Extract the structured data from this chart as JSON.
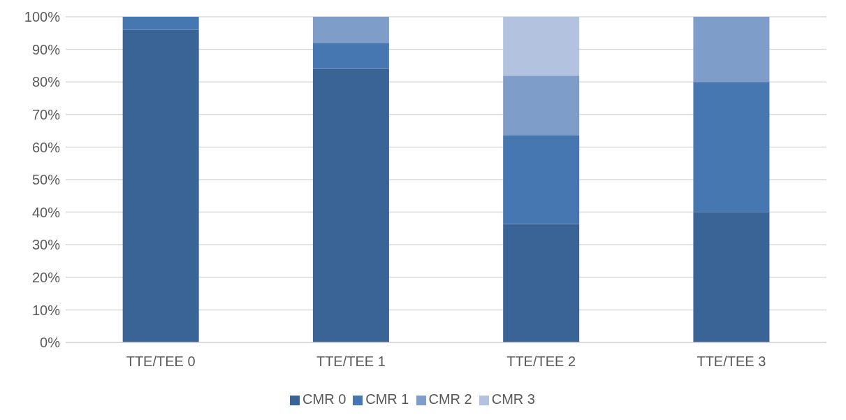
{
  "chart_data": {
    "type": "bar",
    "stacked": true,
    "categories": [
      "TTE/TEE 0",
      "TTE/TEE 1",
      "TTE/TEE 2",
      "TTE/TEE 3"
    ],
    "series": [
      {
        "name": "CMR 0",
        "color": "#3a6496",
        "values": [
          96,
          84,
          36.4,
          40
        ]
      },
      {
        "name": "CMR 1",
        "color": "#4677b0",
        "values": [
          4,
          8,
          27.3,
          40
        ]
      },
      {
        "name": "CMR 2",
        "color": "#7f9dc9",
        "values": [
          0,
          8,
          18.2,
          20
        ]
      },
      {
        "name": "CMR 3",
        "color": "#b3c2de",
        "values": [
          0,
          0,
          18.2,
          0
        ]
      }
    ],
    "ylim": [
      0,
      100
    ],
    "yticks": [
      {
        "value": 0,
        "label": "0%"
      },
      {
        "value": 10,
        "label": "10%"
      },
      {
        "value": 20,
        "label": "20%"
      },
      {
        "value": 30,
        "label": "30%"
      },
      {
        "value": 40,
        "label": "40%"
      },
      {
        "value": 50,
        "label": "50%"
      },
      {
        "value": 60,
        "label": "60%"
      },
      {
        "value": 70,
        "label": "70%"
      },
      {
        "value": 80,
        "label": "80%"
      },
      {
        "value": 90,
        "label": "90%"
      },
      {
        "value": 100,
        "label": "100%"
      }
    ],
    "grid": "y",
    "legend": "bottom"
  }
}
